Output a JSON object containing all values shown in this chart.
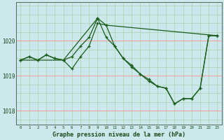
{
  "bg_color": "#cce8ec",
  "grid_color_major": "#ff9999",
  "grid_color_minor": "#aad4aa",
  "line_color": "#1a5c1a",
  "title": "Graphe pression niveau de la mer (hPa)",
  "xlim": [
    -0.5,
    23.5
  ],
  "ylim": [
    1017.6,
    1021.1
  ],
  "yticks": [
    1018,
    1019,
    1020
  ],
  "xticks": [
    0,
    1,
    2,
    3,
    4,
    5,
    6,
    7,
    8,
    9,
    10,
    11,
    12,
    13,
    14,
    15,
    16,
    17,
    18,
    19,
    20,
    21,
    22,
    23
  ],
  "series1_x": [
    0,
    1,
    2,
    3,
    4,
    5,
    6,
    7,
    8,
    9,
    10,
    11,
    12,
    13,
    14,
    15,
    16,
    17,
    18,
    19,
    20,
    21,
    22,
    23
  ],
  "series1_y": [
    1019.45,
    1019.55,
    1019.45,
    1019.6,
    1019.5,
    1019.45,
    1019.2,
    1019.55,
    1019.85,
    1020.5,
    1020.45,
    1019.85,
    1019.5,
    1019.25,
    1019.05,
    1018.85,
    1018.7,
    1018.65,
    1018.2,
    1018.35,
    1018.35,
    1018.65,
    1020.15,
    1020.15
  ],
  "series2_x": [
    0,
    1,
    2,
    3,
    4,
    5,
    6,
    7,
    8,
    9,
    10,
    11,
    12,
    13,
    14,
    15,
    16,
    17,
    18,
    19,
    20,
    21,
    22,
    23
  ],
  "series2_y": [
    1019.45,
    1019.55,
    1019.45,
    1019.6,
    1019.5,
    1019.45,
    1019.55,
    1019.85,
    1020.1,
    1020.65,
    1020.1,
    1019.85,
    1019.5,
    1019.3,
    1019.05,
    1018.9,
    1018.7,
    1018.65,
    1018.2,
    1018.35,
    1018.35,
    1018.65,
    1020.15,
    1020.15
  ],
  "series3_x": [
    0,
    5,
    9,
    10,
    23
  ],
  "series3_y": [
    1019.45,
    1019.45,
    1020.65,
    1020.45,
    1020.15
  ]
}
